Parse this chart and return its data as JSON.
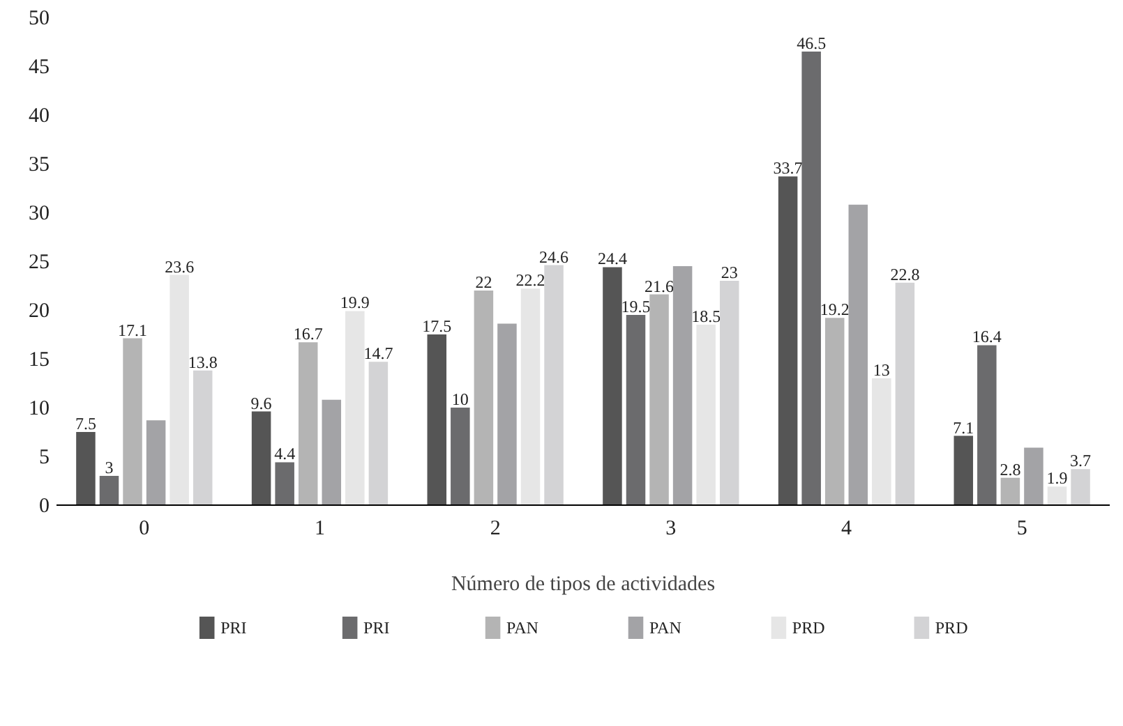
{
  "chart_data": {
    "type": "bar",
    "xlabel": "Número de tipos de actividades",
    "categories": [
      "0",
      "1",
      "2",
      "3",
      "4",
      "5"
    ],
    "ylim": [
      0,
      50
    ],
    "yticks": [
      0,
      5,
      10,
      15,
      20,
      25,
      30,
      35,
      40,
      45,
      50
    ],
    "grid": false,
    "legend": "bottom",
    "series": [
      {
        "name": "PRI",
        "color": "#555555",
        "values": [
          7.5,
          9.6,
          17.5,
          24.4,
          33.7,
          7.1
        ],
        "value_labels": [
          "7.5",
          "9.6",
          "17.5",
          "24.4",
          "33.7",
          "7.1"
        ]
      },
      {
        "name": "PRI",
        "color": "#6b6b6d",
        "values": [
          3,
          4.4,
          10,
          19.5,
          46.5,
          16.4
        ],
        "value_labels": [
          "3",
          "4.4",
          "10",
          "19.5",
          "46.5",
          "16.4"
        ]
      },
      {
        "name": "PAN",
        "color": "#b4b4b4",
        "values": [
          17.1,
          16.7,
          22,
          21.6,
          19.2,
          2.8
        ],
        "value_labels": [
          "17.1",
          "16.7",
          "22",
          "21.6",
          "19.2",
          "2.8"
        ]
      },
      {
        "name": "PAN",
        "color": "#a3a3a6",
        "values": [
          8.7,
          10.8,
          18.6,
          24.5,
          30.8,
          5.9
        ],
        "value_labels": [
          null,
          null,
          null,
          null,
          null,
          null
        ]
      },
      {
        "name": "PRD",
        "color": "#e6e6e6",
        "values": [
          23.6,
          19.9,
          22.2,
          18.5,
          13,
          1.9
        ],
        "value_labels": [
          "23.6",
          "19.9",
          "22.2",
          "18.5",
          "13",
          "1.9"
        ]
      },
      {
        "name": "PRD",
        "color": "#d3d3d5",
        "values": [
          13.8,
          14.7,
          24.6,
          23,
          22.8,
          3.7
        ],
        "value_labels": [
          "13.8",
          "14.7",
          "24.6",
          "23",
          "22.8",
          "3.7"
        ]
      }
    ]
  }
}
